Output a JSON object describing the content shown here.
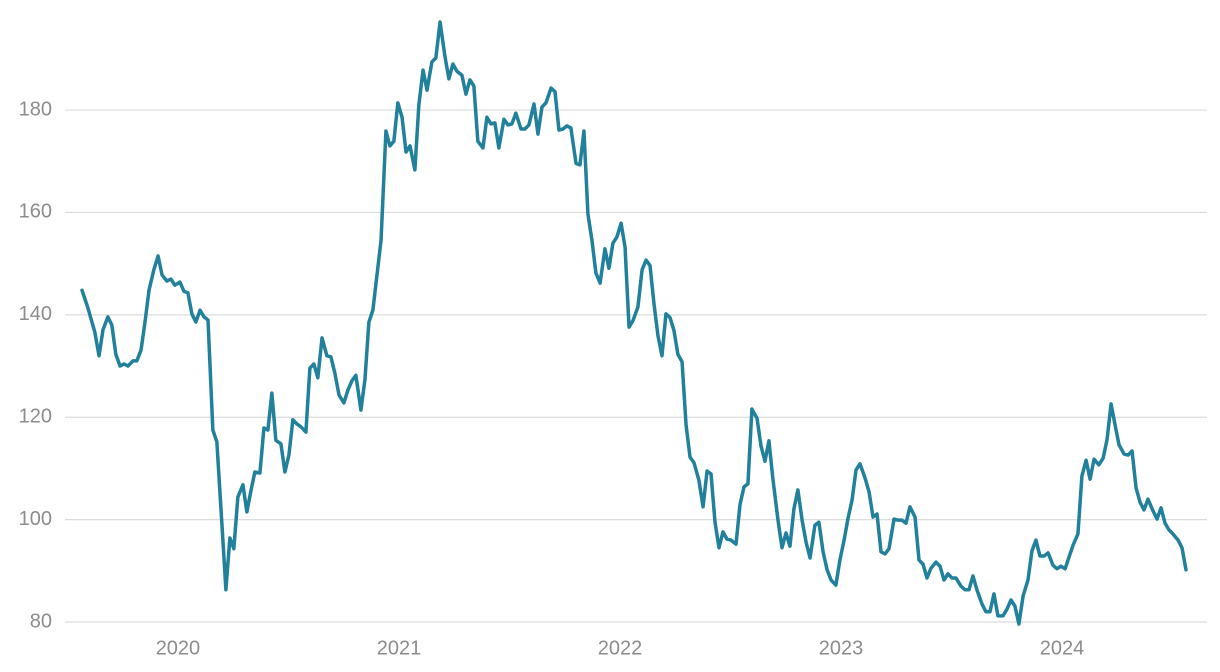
{
  "chart_data": {
    "type": "line",
    "color": "#21809b",
    "grid": true,
    "xlim": [
      2019.489,
      2024.656
    ],
    "ylim": [
      80,
      201.5
    ],
    "xticks": [
      2020,
      2021,
      2022,
      2023,
      2024
    ],
    "yticks": [
      80,
      100,
      120,
      140,
      160,
      180
    ],
    "x": [
      2019.566,
      2019.593,
      2019.624,
      2019.643,
      2019.661,
      2019.683,
      2019.701,
      2019.719,
      2019.738,
      2019.756,
      2019.774,
      2019.796,
      2019.814,
      2019.833,
      2019.851,
      2019.869,
      2019.891,
      2019.91,
      2019.928,
      2019.95,
      2019.968,
      2019.986,
      2020.009,
      2020.027,
      2020.045,
      2020.063,
      2020.081,
      2020.1,
      2020.118,
      2020.136,
      2020.158,
      2020.176,
      2020.195,
      2020.217,
      2020.235,
      2020.253,
      2020.271,
      2020.294,
      2020.312,
      2020.33,
      2020.348,
      2020.371,
      2020.389,
      2020.407,
      2020.425,
      2020.443,
      2020.466,
      2020.484,
      2020.502,
      2020.52,
      2020.538,
      2020.557,
      2020.579,
      2020.597,
      2020.615,
      2020.633,
      2020.652,
      2020.674,
      2020.692,
      2020.71,
      2020.729,
      2020.751,
      2020.769,
      2020.787,
      2020.805,
      2020.828,
      2020.846,
      2020.864,
      2020.882,
      2020.9,
      2020.919,
      2020.941,
      2020.959,
      2020.977,
      2020.995,
      2021.014,
      2021.032,
      2021.05,
      2021.072,
      2021.09,
      2021.109,
      2021.127,
      2021.149,
      2021.167,
      2021.186,
      2021.208,
      2021.226,
      2021.244,
      2021.262,
      2021.285,
      2021.303,
      2021.321,
      2021.339,
      2021.357,
      2021.38,
      2021.398,
      2021.416,
      2021.434,
      2021.452,
      2021.475,
      2021.493,
      2021.511,
      2021.529,
      2021.552,
      2021.57,
      2021.588,
      2021.611,
      2021.629,
      2021.647,
      2021.665,
      2021.688,
      2021.706,
      2021.724,
      2021.742,
      2021.76,
      2021.778,
      2021.801,
      2021.819,
      2021.837,
      2021.855,
      2021.873,
      2021.891,
      2021.91,
      2021.932,
      2021.95,
      2021.968,
      2021.986,
      2022.005,
      2022.023,
      2022.041,
      2022.059,
      2022.081,
      2022.1,
      2022.118,
      2022.136,
      2022.154,
      2022.172,
      2022.19,
      2022.208,
      2022.226,
      2022.244,
      2022.262,
      2022.281,
      2022.299,
      2022.317,
      2022.335,
      2022.357,
      2022.376,
      2022.394,
      2022.412,
      2022.43,
      2022.448,
      2022.466,
      2022.484,
      2022.502,
      2022.525,
      2022.543,
      2022.561,
      2022.579,
      2022.597,
      2022.62,
      2022.638,
      2022.656,
      2022.674,
      2022.692,
      2022.715,
      2022.733,
      2022.751,
      2022.769,
      2022.787,
      2022.805,
      2022.824,
      2022.842,
      2022.86,
      2022.882,
      2022.9,
      2022.919,
      2022.937,
      2022.955,
      2022.977,
      2022.995,
      2023.014,
      2023.032,
      2023.05,
      2023.068,
      2023.086,
      2023.109,
      2023.127,
      2023.145,
      2023.163,
      2023.181,
      2023.199,
      2023.217,
      2023.24,
      2023.258,
      2023.276,
      2023.294,
      2023.312,
      2023.335,
      2023.353,
      2023.371,
      2023.389,
      2023.407,
      2023.43,
      2023.448,
      2023.466,
      2023.484,
      2023.502,
      2023.52,
      2023.543,
      2023.561,
      2023.579,
      2023.597,
      2023.615,
      2023.638,
      2023.656,
      2023.674,
      2023.692,
      2023.71,
      2023.733,
      2023.751,
      2023.769,
      2023.787,
      2023.805,
      2023.824,
      2023.846,
      2023.864,
      2023.882,
      2023.9,
      2023.919,
      2023.937,
      2023.959,
      2023.977,
      2023.995,
      2024.014,
      2024.032,
      2024.05,
      2024.072,
      2024.09,
      2024.109,
      2024.127,
      2024.145,
      2024.167,
      2024.186,
      2024.204,
      2024.222,
      2024.24,
      2024.258,
      2024.281,
      2024.299,
      2024.317,
      2024.335,
      2024.353,
      2024.371,
      2024.389,
      2024.412,
      2024.43,
      2024.448,
      2024.466,
      2024.484,
      2024.502,
      2024.525,
      2024.543,
      2024.561
    ],
    "values": [
      144.8,
      141.3,
      136.6,
      132,
      137.1,
      139.6,
      138,
      132.3,
      130,
      130.4,
      130,
      131,
      131,
      133.1,
      138.6,
      144.8,
      148.8,
      151.5,
      147.8,
      146.6,
      147,
      145.8,
      146.4,
      144.6,
      144.3,
      140.2,
      138.6,
      140.9,
      139.6,
      139,
      117.5,
      115.2,
      101.9,
      86.3,
      96.4,
      94.3,
      104.4,
      106.8,
      101.5,
      105.6,
      109.3,
      109.1,
      117.9,
      117.5,
      124.7,
      115.5,
      114.8,
      109.3,
      112.6,
      119.5,
      118.7,
      118.1,
      117.1,
      129.6,
      130.4,
      127.7,
      135.5,
      132,
      131.8,
      128.6,
      124.3,
      122.8,
      125.3,
      127.1,
      128.2,
      121.4,
      127.3,
      138.6,
      140.9,
      147.6,
      154.6,
      175.9,
      173,
      173.9,
      181.4,
      178.6,
      171.8,
      173,
      168.3,
      181,
      187.8,
      183.9,
      189.4,
      190.2,
      197.2,
      190.5,
      186.1,
      189,
      187.6,
      186.8,
      183.1,
      185.9,
      184.7,
      173.9,
      172.6,
      178.6,
      177.3,
      177.5,
      172.6,
      178.2,
      177.1,
      177.3,
      179.4,
      176.3,
      176.3,
      177.1,
      181.2,
      175.3,
      180.6,
      181.4,
      184.3,
      183.6,
      176.1,
      176.3,
      176.9,
      176.5,
      169.6,
      169.3,
      175.9,
      159.7,
      154.6,
      148.2,
      146.2,
      152.9,
      149.1,
      154,
      155.2,
      157.9,
      153.2,
      137.6,
      138.9,
      141.5,
      148.8,
      150.7,
      149.6,
      142.1,
      135.9,
      132,
      140.2,
      139.5,
      137,
      132.3,
      130.8,
      118.5,
      112.2,
      111.1,
      107.7,
      102.5,
      109.5,
      108.9,
      99.5,
      94.5,
      97.6,
      96.2,
      96,
      95.2,
      102.9,
      106.4,
      107,
      121.6,
      119.8,
      114.4,
      111.4,
      115.4,
      107.9,
      99.9,
      94.5,
      97.4,
      94.8,
      102.1,
      105.8,
      99.9,
      95.6,
      92.5,
      98.9,
      99.5,
      93.7,
      90.2,
      88.2,
      87.2,
      92.1,
      96,
      100.3,
      103.8,
      109.7,
      110.9,
      108.1,
      105.4,
      100.5,
      101.1,
      93.7,
      93.3,
      94.3,
      100.1,
      99.9,
      99.9,
      99.3,
      102.5,
      100.5,
      92.1,
      91.3,
      88.6,
      90.5,
      91.7,
      90.9,
      88.2,
      89.4,
      88.6,
      88.6,
      87,
      86.3,
      86.3,
      89,
      86.3,
      83.5,
      82,
      82,
      85.5,
      81.2,
      81.2,
      82.5,
      84.3,
      83.1,
      79.6,
      85.1,
      88.2,
      93.9,
      96,
      92.9,
      92.9,
      93.5,
      91.1,
      90.4,
      90.9,
      90.4,
      92.7,
      95,
      97.2,
      108.5,
      111.6,
      107.9,
      111.8,
      110.7,
      112,
      115.7,
      122.6,
      118.5,
      114.6,
      112.8,
      112.6,
      113.4,
      106.2,
      103.4,
      101.9,
      104,
      101.7,
      100.1,
      102.3,
      99.3,
      98,
      97.2,
      96,
      94.5,
      90.2
    ]
  }
}
